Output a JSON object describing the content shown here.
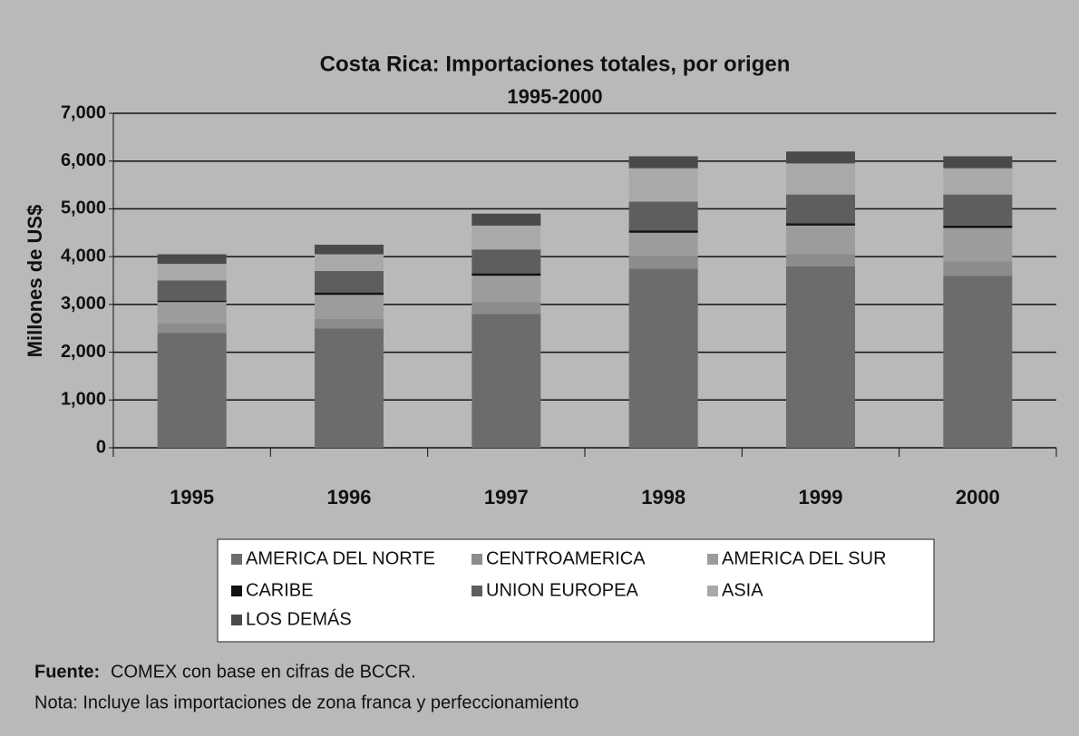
{
  "chart_data": {
    "type": "stacked_bar",
    "title": "Costa Rica: Importaciones totales, por origen",
    "subtitle": "1995-2000",
    "y_label": "Millones de US$",
    "categories": [
      "1995",
      "1996",
      "1997",
      "1998",
      "1999",
      "2000"
    ],
    "series": [
      {
        "name": "AMERICA DEL NORTE",
        "color": "#6c6c6c",
        "values": [
          2400,
          2500,
          2800,
          3750,
          3800,
          3600
        ]
      },
      {
        "name": "CENTROAMERICA",
        "color": "#8c8c8c",
        "values": [
          200,
          200,
          250,
          250,
          250,
          300
        ]
      },
      {
        "name": "AMERICA DEL SUR",
        "color": "#9c9c9c",
        "values": [
          450,
          500,
          550,
          500,
          600,
          700
        ]
      },
      {
        "name": "CARIBE",
        "color": "#111111",
        "values": [
          30,
          50,
          50,
          50,
          50,
          50
        ]
      },
      {
        "name": "UNION EUROPEA",
        "color": "#5e5e5e",
        "values": [
          420,
          450,
          500,
          600,
          600,
          650
        ]
      },
      {
        "name": "ASIA",
        "color": "#a9a9a9",
        "values": [
          350,
          350,
          500,
          700,
          650,
          550
        ]
      },
      {
        "name": "LOS DEMÁS",
        "color": "#4a4a4a",
        "values": [
          200,
          200,
          250,
          250,
          250,
          250
        ]
      }
    ],
    "ylim": [
      0,
      7000
    ],
    "yticks": [
      0,
      {
        "value": 1000,
        "label": "1,000"
      },
      {
        "value": 2000,
        "label": "2,000"
      },
      {
        "value": 3000,
        "label": "3,000"
      },
      {
        "value": 4000,
        "label": "4,000"
      },
      {
        "value": 5000,
        "label": "5,000"
      },
      {
        "value": 6000,
        "label": "6,000"
      },
      {
        "value": 7000,
        "label": "7,000"
      }
    ],
    "grid": true,
    "source_label": "Fuente:",
    "source_text": "COMEX con base en cifras de BCCR.",
    "note": "Nota: Incluye las importaciones de zona franca y perfeccionamiento"
  }
}
